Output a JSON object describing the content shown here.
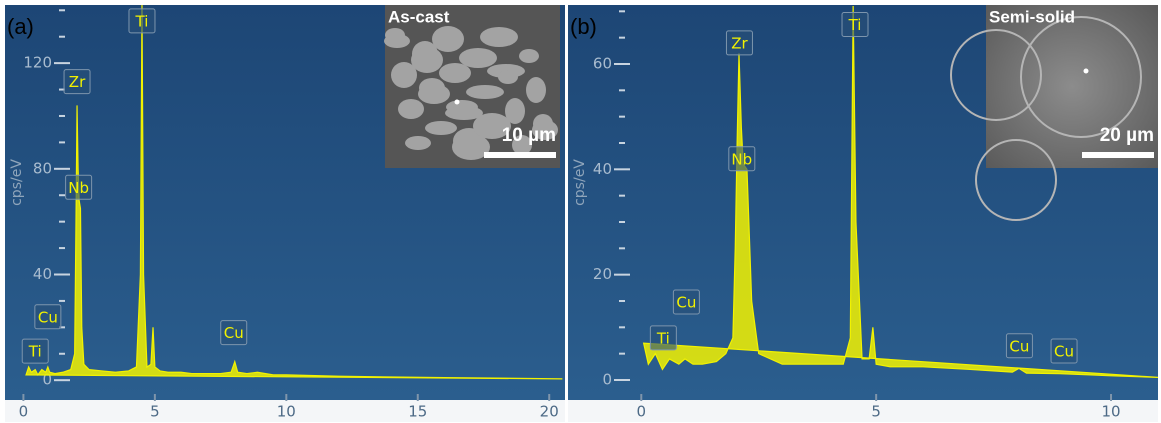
{
  "chart_data": [
    {
      "type": "line",
      "panel_label": "(a)",
      "ylabel": "cps/eV",
      "inset_title": "As-cast",
      "scale_bar": "10 µm",
      "color": "#f2f200",
      "x": [
        0.1,
        0.2,
        0.3,
        0.45,
        0.55,
        0.7,
        0.85,
        0.93,
        1.0,
        1.2,
        1.5,
        1.8,
        1.95,
        2.0,
        2.04,
        2.08,
        2.12,
        2.17,
        2.22,
        2.3,
        2.5,
        3.0,
        3.5,
        4.0,
        4.3,
        4.45,
        4.51,
        4.57,
        4.7,
        4.85,
        4.93,
        5.0,
        5.2,
        5.5,
        6.0,
        6.4,
        6.9,
        7.5,
        7.9,
        8.04,
        8.15,
        8.5,
        8.9,
        9.5,
        10,
        12,
        14,
        16,
        18,
        20.5
      ],
      "values": [
        2,
        5,
        3,
        4,
        2,
        4,
        3,
        5,
        3,
        2.5,
        3,
        4,
        10,
        60,
        104,
        80,
        68,
        65,
        20,
        6,
        4,
        3.5,
        3,
        3.5,
        5,
        40,
        142,
        40,
        5,
        6,
        20,
        5,
        3.5,
        3,
        3,
        2.5,
        2.5,
        2.5,
        3,
        7,
        3,
        2.5,
        3,
        2,
        2,
        1.5,
        1.2,
        1,
        0.8,
        0.5
      ],
      "xlim": [
        -0.7,
        20.6
      ],
      "ylim": [
        -7.5,
        142
      ],
      "xticks": [
        0,
        5,
        10,
        15,
        20
      ],
      "yticks": [
        0,
        40,
        80,
        120
      ],
      "minor_yticks": [
        10,
        20,
        30,
        50,
        60,
        70,
        90,
        100,
        110,
        130,
        140
      ],
      "annotations": [
        {
          "text": "Ti",
          "x": 0.45,
          "y": 11
        },
        {
          "text": "Cu",
          "x": 0.93,
          "y": 24
        },
        {
          "text": "Zr",
          "x": 2.04,
          "y": 113
        },
        {
          "text": "Nb",
          "x": 2.1,
          "y": 73
        },
        {
          "text": "Ti",
          "x": 4.51,
          "y": 136
        },
        {
          "text": "Cu",
          "x": 8.0,
          "y": 18
        }
      ]
    },
    {
      "type": "line",
      "panel_label": "(b)",
      "ylabel": "cps/eV",
      "inset_title": "Semi-solid",
      "scale_bar": "20 µm",
      "color": "#f2f200",
      "x": [
        0.05,
        0.15,
        0.3,
        0.45,
        0.6,
        0.8,
        0.93,
        1.1,
        1.3,
        1.6,
        1.8,
        1.95,
        2.0,
        2.04,
        2.08,
        2.13,
        2.17,
        2.25,
        2.35,
        2.5,
        3.0,
        3.5,
        4.0,
        4.3,
        4.45,
        4.51,
        4.57,
        4.7,
        4.85,
        4.93,
        5.0,
        5.3,
        6.0,
        7.0,
        7.9,
        8.04,
        8.2,
        8.9,
        9.5,
        10,
        11
      ],
      "values": [
        7,
        3,
        5,
        2,
        4,
        3,
        4,
        3,
        3,
        3.5,
        5,
        8,
        25,
        45,
        62,
        48,
        41,
        40,
        15,
        5,
        3,
        3,
        3,
        3,
        8,
        71,
        30,
        4,
        4,
        10,
        3,
        2.5,
        2.5,
        2,
        1.5,
        2.2,
        1.3,
        1.2,
        1,
        0.8,
        0.5
      ],
      "xlim": [
        -1.56,
        11.0
      ],
      "ylim": [
        -3.8,
        71.2
      ],
      "xticks": [
        0,
        5,
        10
      ],
      "yticks": [
        0,
        20,
        40,
        60
      ],
      "minor_yticks": [
        5,
        10,
        15,
        25,
        30,
        35,
        45,
        50,
        55,
        65,
        70
      ],
      "annotations": [
        {
          "text": "Ti",
          "x": 0.47,
          "y": 8
        },
        {
          "text": "Cu",
          "x": 0.96,
          "y": 14.8
        },
        {
          "text": "Zr",
          "x": 2.09,
          "y": 64
        },
        {
          "text": "Nb",
          "x": 2.14,
          "y": 42
        },
        {
          "text": "Ti",
          "x": 4.55,
          "y": 67.5
        },
        {
          "text": "Cu",
          "x": 8.05,
          "y": 6.5
        },
        {
          "text": "Cu",
          "x": 9.0,
          "y": 5.5
        }
      ]
    }
  ]
}
